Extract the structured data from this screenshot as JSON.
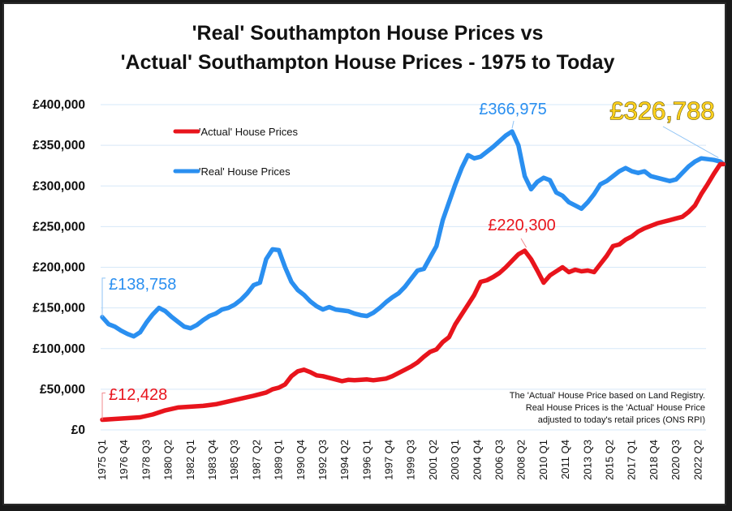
{
  "chart_data": {
    "type": "line",
    "title_lines": [
      "'Real' Southampton House Prices vs",
      "'Actual' Southampton House Prices - 1975 to Today"
    ],
    "xlabel": "",
    "ylabel": "",
    "ylim": [
      0,
      400000
    ],
    "yticks": [
      0,
      50000,
      100000,
      150000,
      200000,
      250000,
      300000,
      350000,
      400000
    ],
    "ytick_labels": [
      "£0",
      "£50,000",
      "£100,000",
      "£150,000",
      "£200,000",
      "£250,000",
      "£300,000",
      "£350,000",
      "£400,000"
    ],
    "grid": true,
    "x_unit": "quarter index from 1975 Q1",
    "xlim": [
      0,
      197
    ],
    "xtick_labels": [
      "1975 Q1",
      "1976 Q4",
      "1978 Q3",
      "1980 Q2",
      "1982 Q1",
      "1983 Q4",
      "1985 Q3",
      "1987 Q2",
      "1989 Q1",
      "1990 Q4",
      "1992 Q3",
      "1994 Q2",
      "1996 Q1",
      "1997 Q4",
      "1999 Q3",
      "2001 Q2",
      "2003 Q1",
      "2004 Q4",
      "2006 Q3",
      "2008 Q2",
      "2010 Q1",
      "2011 Q4",
      "2013 Q3",
      "2015 Q2",
      "2017 Q1",
      "2018 Q4",
      "2020 Q3",
      "2022 Q2"
    ],
    "xtick_step_quarters": 7,
    "legend": {
      "placement": "top-left",
      "entries": [
        {
          "label": "'Actual' House Prices",
          "color": "#e8141c"
        },
        {
          "label": "'Real' House Prices",
          "color": "#2a8ff0"
        }
      ]
    },
    "series": [
      {
        "name": "'Actual' House Prices",
        "color": "#e8141c",
        "x": [
          0,
          4,
          8,
          12,
          16,
          20,
          24,
          28,
          32,
          36,
          40,
          44,
          48,
          52,
          54,
          56,
          58,
          60,
          62,
          64,
          66,
          68,
          70,
          72,
          74,
          76,
          78,
          80,
          82,
          84,
          86,
          88,
          90,
          92,
          94,
          96,
          98,
          100,
          102,
          104,
          106,
          108,
          110,
          112,
          114,
          116,
          118,
          120,
          122,
          124,
          126,
          128,
          130,
          132,
          134,
          136,
          138,
          140,
          142,
          144,
          146,
          148,
          150,
          152,
          154,
          156,
          158,
          160,
          162,
          164,
          166,
          168,
          170,
          172,
          174,
          176,
          178,
          180,
          182,
          184,
          186,
          188,
          190,
          192,
          194,
          196,
          197
        ],
        "values": [
          12428,
          13500,
          14500,
          15500,
          19000,
          24000,
          27500,
          28500,
          29500,
          31500,
          35000,
          38500,
          42000,
          46000,
          50000,
          52000,
          56000,
          66000,
          72000,
          74000,
          71000,
          67000,
          66000,
          64000,
          62000,
          60000,
          61500,
          61000,
          61500,
          62000,
          61000,
          62000,
          63000,
          66000,
          70000,
          74000,
          78000,
          83000,
          90000,
          96000,
          99000,
          108000,
          114000,
          130000,
          142000,
          154000,
          166000,
          182000,
          184000,
          188000,
          193000,
          200000,
          208000,
          216000,
          220300,
          210000,
          196000,
          181000,
          190000,
          195000,
          200000,
          194000,
          197000,
          195000,
          196000,
          194000,
          204000,
          214000,
          226000,
          228000,
          234000,
          238000,
          244000,
          248000,
          251000,
          254000,
          256000,
          258000,
          260000,
          262000,
          268000,
          276000,
          290000,
          302000,
          315000,
          326788,
          326788
        ]
      },
      {
        "name": "'Real' House Prices",
        "color": "#2a8ff0",
        "x": [
          0,
          2,
          4,
          6,
          8,
          10,
          12,
          14,
          16,
          18,
          20,
          22,
          24,
          26,
          28,
          30,
          32,
          34,
          36,
          38,
          40,
          42,
          44,
          46,
          48,
          50,
          52,
          54,
          56,
          58,
          60,
          62,
          64,
          66,
          68,
          70,
          72,
          74,
          76,
          78,
          80,
          82,
          84,
          86,
          88,
          90,
          92,
          94,
          96,
          98,
          100,
          102,
          104,
          106,
          108,
          110,
          112,
          114,
          116,
          118,
          120,
          122,
          124,
          126,
          128,
          130,
          132,
          134,
          136,
          138,
          140,
          142,
          144,
          146,
          148,
          150,
          152,
          154,
          156,
          158,
          160,
          162,
          164,
          166,
          168,
          170,
          172,
          174,
          176,
          178,
          180,
          182,
          184,
          186,
          188,
          190,
          192,
          194,
          196,
          197
        ],
        "values": [
          138758,
          130000,
          127000,
          122000,
          118000,
          115000,
          120000,
          132000,
          142000,
          150000,
          146000,
          139000,
          133000,
          127000,
          125000,
          129000,
          135000,
          140000,
          143000,
          148000,
          150000,
          154000,
          160000,
          168000,
          178000,
          181000,
          210000,
          222000,
          221000,
          200000,
          182000,
          172000,
          166000,
          158000,
          152000,
          148000,
          151000,
          148000,
          147000,
          146000,
          143000,
          141000,
          140000,
          144000,
          150000,
          157000,
          163000,
          168000,
          176000,
          186000,
          196000,
          198000,
          212000,
          226000,
          258000,
          280000,
          302000,
          322000,
          338000,
          334000,
          336000,
          342000,
          348000,
          355000,
          362000,
          366975,
          350000,
          312000,
          296000,
          305000,
          310000,
          307000,
          292000,
          288000,
          280000,
          276000,
          272000,
          280000,
          290000,
          302000,
          306000,
          312000,
          318000,
          322000,
          318000,
          316000,
          318000,
          312000,
          310000,
          308000,
          306000,
          308000,
          316000,
          324000,
          330000,
          334000,
          333000,
          332000,
          330000,
          326788
        ]
      }
    ],
    "annotations": [
      {
        "text": "£138,758",
        "series": "'Real' House Prices",
        "x": 0,
        "value": 138758,
        "color": "#2a8ff0"
      },
      {
        "text": "£12,428",
        "series": "'Actual' House Prices",
        "x": 0,
        "value": 12428,
        "color": "#e8141c"
      },
      {
        "text": "£366,975",
        "series": "'Real' House Prices",
        "x": 130,
        "value": 366975,
        "color": "#2a8ff0"
      },
      {
        "text": "£220,300",
        "series": "'Actual' House Prices",
        "x": 134,
        "value": 220300,
        "color": "#e8141c"
      },
      {
        "text": "£326,788",
        "series": "both",
        "x": 197,
        "value": 326788,
        "color": "#ffd21f"
      }
    ],
    "note_lines": [
      "The 'Actual' House Price based on Land Registry.",
      "Real House Prices is the 'Actual' House Price",
      "adjusted to today's retail prices (ONS RPI)"
    ]
  }
}
